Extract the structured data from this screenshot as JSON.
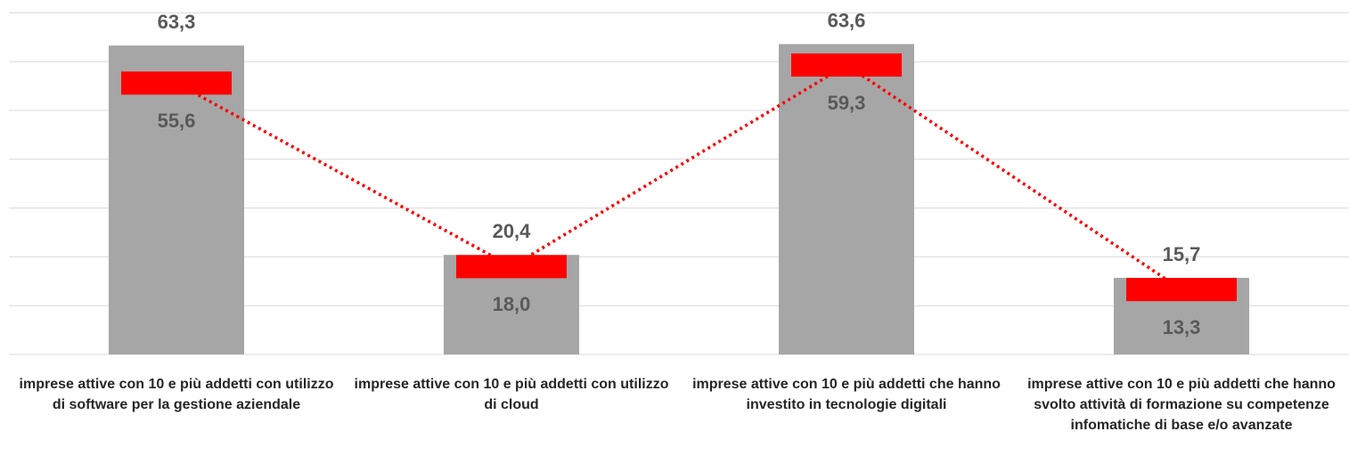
{
  "chart_data": {
    "type": "bar",
    "categories": [
      "imprese attive con 10 e più addetti con utilizzo di software per la gestione aziendale",
      "imprese attive con 10 e più addetti con utilizzo di cloud",
      "imprese attive con 10 e più addetti che hanno investito in tecnologie digitali",
      "imprese attive con 10 e più addetti che hanno svolto attività  di formazione su competenze infomatiche di base e/o avanzate"
    ],
    "series": [
      {
        "type": "bar",
        "color": "#a6a6a6",
        "values": [
          63.3,
          20.4,
          63.6,
          15.7
        ],
        "value_labels": [
          "63,3",
          "20,4",
          "63,6",
          "15,7"
        ]
      },
      {
        "type": "line",
        "color": "#ff0000",
        "values": [
          55.6,
          18.0,
          59.3,
          13.3
        ],
        "value_labels": [
          "55,6",
          "18,0",
          "59,3",
          "13,3"
        ]
      }
    ],
    "ylim": [
      0,
      70
    ],
    "yticks": [
      0,
      10,
      20,
      30,
      40,
      50,
      60,
      70
    ],
    "grid": true
  }
}
